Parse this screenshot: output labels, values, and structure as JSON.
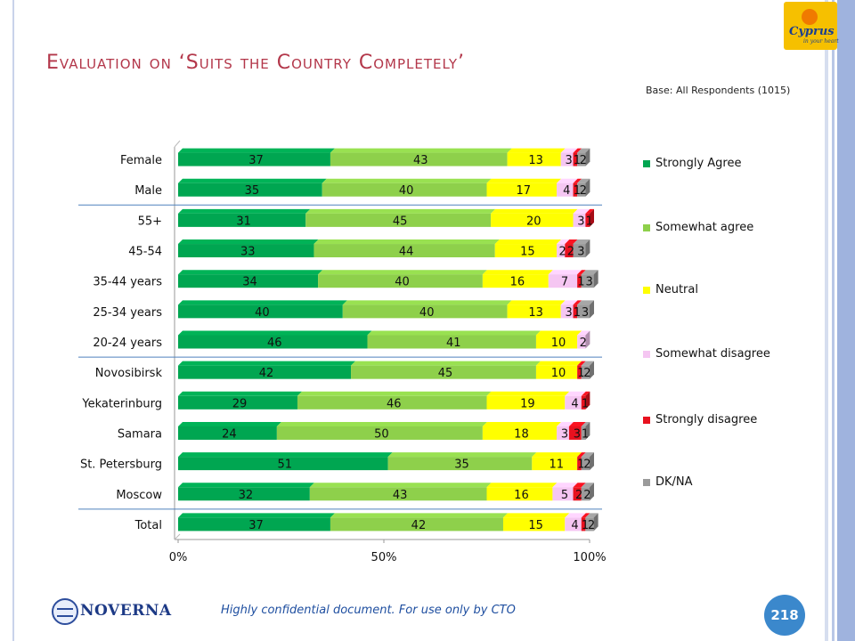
{
  "title": "Evaluation on ‘Suits the Country Completely’",
  "base_note": "Base: All Respondents (1015)",
  "logo": {
    "name": "Cyprus",
    "tagline": "in your heart"
  },
  "footer": {
    "confidential": "Highly confidential document. For use only by CTO",
    "company": "NOVERNA",
    "page_number": "218"
  },
  "colors": {
    "title": "#b3374a",
    "Strongly Agree": "#00a651",
    "Somewhat agree": "#8ed04b",
    "Neutral": "#ffff00",
    "Somewhat disagree": "#f5c6f2",
    "Strongly disagree": "#e8111f",
    "DK/NA": "#9b9b9b"
  },
  "chart_data": {
    "type": "bar",
    "orientation": "horizontal",
    "stacked": true,
    "percent_stacked": true,
    "title": "Evaluation on ‘Suits the Country Completely’",
    "xlabel": "",
    "ylabel": "",
    "xlim": [
      0,
      100
    ],
    "x_ticks": [
      "0%",
      "50%",
      "100%"
    ],
    "legend_position": "right",
    "categories": [
      "Female",
      "Male",
      "55+",
      "45-54",
      "35-44 years",
      "25-34 years",
      "20-24 years",
      "Novosibirsk",
      "Yekaterinburg",
      "Samara",
      "St. Petersburg",
      "Moscow",
      "Total"
    ],
    "group_separators_after": [
      "Male",
      "20-24 years",
      "Moscow"
    ],
    "series": [
      {
        "name": "Strongly Agree",
        "values": [
          37,
          35,
          31,
          33,
          34,
          40,
          46,
          42,
          29,
          24,
          51,
          32,
          37
        ]
      },
      {
        "name": "Somewhat agree",
        "values": [
          43,
          40,
          45,
          44,
          40,
          40,
          41,
          45,
          46,
          50,
          35,
          43,
          42
        ]
      },
      {
        "name": "Neutral",
        "values": [
          13,
          17,
          20,
          15,
          16,
          13,
          10,
          10,
          19,
          18,
          11,
          16,
          15
        ]
      },
      {
        "name": "Somewhat disagree",
        "values": [
          3,
          4,
          3,
          2,
          7,
          3,
          2,
          null,
          4,
          3,
          null,
          5,
          4
        ]
      },
      {
        "name": "Strongly disagree",
        "values": [
          1,
          1,
          1,
          2,
          1,
          1,
          null,
          1,
          1,
          3,
          1,
          2,
          1
        ]
      },
      {
        "name": "DK/NA",
        "values": [
          2,
          2,
          null,
          3,
          3,
          3,
          null,
          2,
          null,
          1,
          2,
          2,
          2
        ]
      }
    ]
  }
}
